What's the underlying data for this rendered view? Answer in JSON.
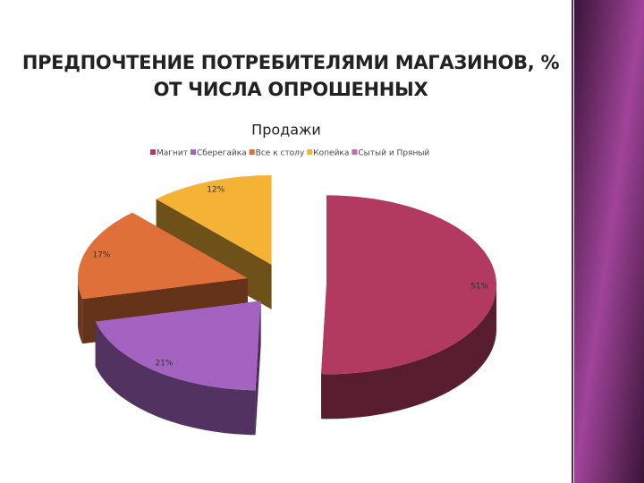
{
  "chart_data": {
    "type": "pie3d",
    "title": "ПРЕДПОЧТЕНИЕ ПОТРЕБИТЕЛЯМИ МАГАЗИНОВ, % ОТ ЧИСЛА ОПРОШЕННЫХ",
    "subtitle": "Продажи",
    "categories": [
      "Магнит",
      "Сберегайка",
      "Все к столу",
      "Копейка",
      "Сытый и Пряный"
    ],
    "values": [
      51,
      21,
      17,
      12,
      0
    ],
    "value_labels": [
      "51%",
      "21%",
      "17%",
      "12%",
      null
    ],
    "colors": [
      "#b23a60",
      "#a463c0",
      "#e0703a",
      "#f5b335",
      "#c86aa8"
    ],
    "legend": "top"
  }
}
